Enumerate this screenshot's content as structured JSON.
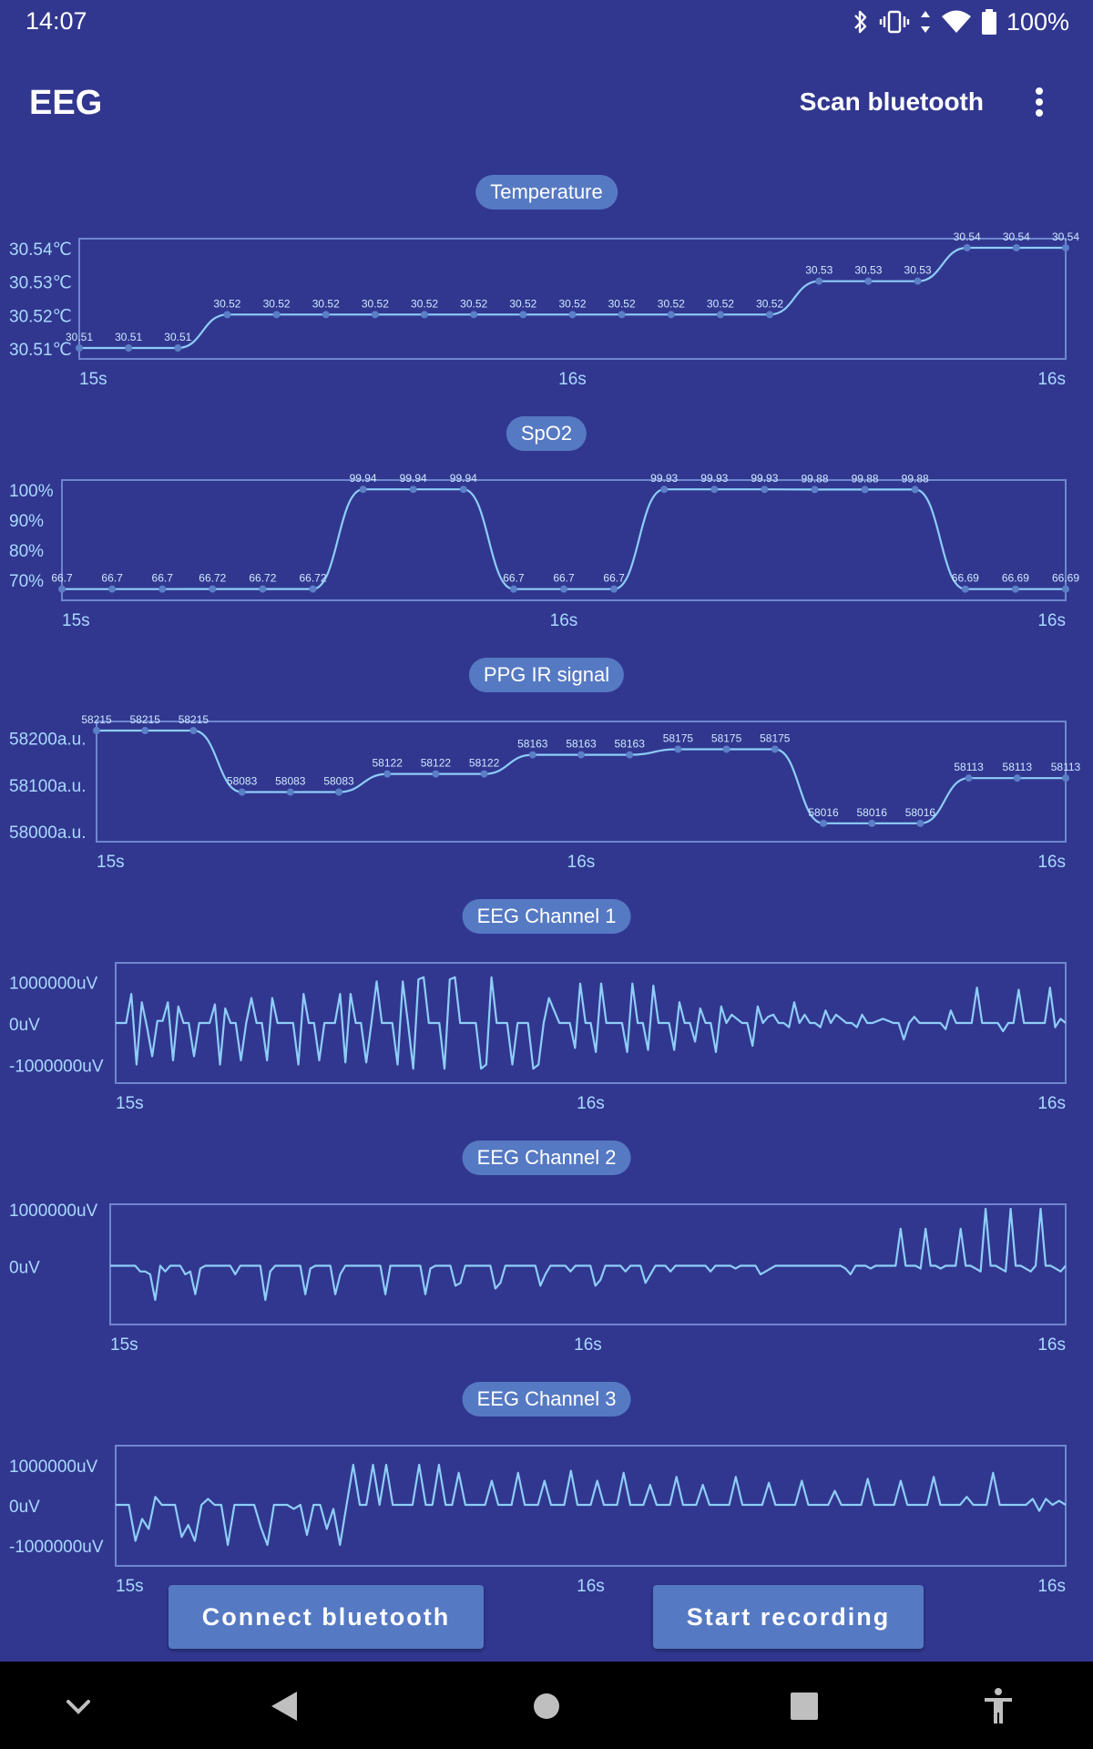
{
  "status_bar": {
    "time": "14:07",
    "battery": "100%",
    "icons": [
      "bluetooth-icon",
      "vibrate-icon",
      "data-arrows-icon",
      "wifi-icon",
      "battery-icon"
    ]
  },
  "app_bar": {
    "title": "EEG",
    "scan_label": "Scan bluetooth",
    "overflow_icon": "more-vert-icon"
  },
  "colors": {
    "background": "#31378f",
    "pill": "#5679c3",
    "line": "#8ecdf8",
    "axis": "#6f86cf",
    "label": "#a9d8ff"
  },
  "charts": [
    {
      "title": "Temperature",
      "y_ticks": [
        "30.54℃",
        "30.53℃",
        "30.52℃",
        "30.51℃"
      ],
      "x_ticks": [
        "15s",
        "16s",
        "16s"
      ]
    },
    {
      "title": "SpO2",
      "y_ticks": [
        "100%",
        "90%",
        "80%",
        "70%"
      ],
      "x_ticks": [
        "15s",
        "16s",
        "16s"
      ]
    },
    {
      "title": "PPG IR signal",
      "y_ticks": [
        "58200a.u.",
        "58100a.u.",
        "58000a.u."
      ],
      "x_ticks": [
        "15s",
        "16s",
        "16s"
      ]
    },
    {
      "title": "EEG Channel 1",
      "y_ticks": [
        "1000000uV",
        "0uV",
        "-1000000uV"
      ],
      "x_ticks": [
        "15s",
        "16s",
        "16s"
      ]
    },
    {
      "title": "EEG Channel 2",
      "y_ticks": [
        "1000000uV",
        "0uV"
      ],
      "x_ticks": [
        "15s",
        "16s",
        "16s"
      ]
    },
    {
      "title": "EEG Channel 3",
      "y_ticks": [
        "1000000uV",
        "0uV",
        "-1000000uV"
      ],
      "x_ticks": [
        "15s",
        "16s",
        "16s"
      ]
    }
  ],
  "chart_data": [
    {
      "type": "line",
      "title": "Temperature",
      "ylabel": "",
      "y_unit": "℃",
      "ylim": [
        30.51,
        30.54
      ],
      "y_tick_values": [
        30.54,
        30.53,
        30.52,
        30.51
      ],
      "x_tick_labels": [
        "15s",
        "16s",
        "16s"
      ],
      "smooth": true,
      "show_point_labels": true,
      "values": [
        30.51,
        30.51,
        30.51,
        30.52,
        30.52,
        30.52,
        30.52,
        30.52,
        30.52,
        30.52,
        30.52,
        30.52,
        30.52,
        30.52,
        30.52,
        30.53,
        30.53,
        30.53,
        30.54,
        30.54,
        30.54
      ],
      "point_labels": [
        "30.51",
        "30.51",
        "30.51",
        "30.52",
        "30.52",
        "30.52",
        "30.52",
        "30.52",
        "30.52",
        "30.52",
        "30.52",
        "30.52",
        "30.52",
        "30.52",
        "30.52",
        "30.53",
        "30.53",
        "30.53",
        "30.54",
        "30.54",
        "30.54"
      ]
    },
    {
      "type": "line",
      "title": "SpO2",
      "ylabel": "",
      "y_unit": "%",
      "ylim": [
        66.6,
        100
      ],
      "y_tick_values": [
        100,
        90,
        80,
        70
      ],
      "x_tick_labels": [
        "15s",
        "16s",
        "16s"
      ],
      "smooth": true,
      "show_point_labels": true,
      "values": [
        66.7,
        66.7,
        66.7,
        66.72,
        66.72,
        66.72,
        99.94,
        99.94,
        99.94,
        66.7,
        66.7,
        66.7,
        99.93,
        99.93,
        99.93,
        99.88,
        99.88,
        99.88,
        66.69,
        66.69,
        66.69
      ],
      "point_labels": [
        "66.7",
        "66.7",
        "66.7",
        "66.72",
        "66.72",
        "66.72",
        "99.94",
        "99.94",
        "99.94",
        "66.7",
        "66.7",
        "66.7",
        "99.93",
        "99.93",
        "99.93",
        "99.88",
        "99.88",
        "99.88",
        "66.69",
        "66.69",
        "66.69"
      ]
    },
    {
      "type": "line",
      "title": "PPG IR signal",
      "ylabel": "",
      "y_unit": "a.u.",
      "ylim": [
        58000,
        58215
      ],
      "y_tick_values": [
        58200,
        58100,
        58000
      ],
      "x_tick_labels": [
        "15s",
        "16s",
        "16s"
      ],
      "smooth": true,
      "show_point_labels": true,
      "values": [
        58215,
        58215,
        58215,
        58083,
        58083,
        58083,
        58122,
        58122,
        58122,
        58163,
        58163,
        58163,
        58175,
        58175,
        58175,
        58016,
        58016,
        58016,
        58113,
        58113,
        58113
      ],
      "point_labels": [
        "58215",
        "58215",
        "58215",
        "58083",
        "58083",
        "58083",
        "58122",
        "58122",
        "58122",
        "58163",
        "58163",
        "58163",
        "58175",
        "58175",
        "58175",
        "58016",
        "58016",
        "58016",
        "58113",
        "58113",
        "58113"
      ]
    },
    {
      "type": "line",
      "title": "EEG Channel 1",
      "ylabel": "",
      "y_unit": "uV",
      "ylim": [
        -1250000,
        1250000
      ],
      "y_tick_values": [
        1000000,
        0,
        -1000000
      ],
      "x_tick_labels": [
        "15s",
        "16s",
        "16s"
      ],
      "smooth": false,
      "show_point_labels": false,
      "values": [
        0,
        0,
        0,
        700000,
        -1000000,
        500000,
        -100000,
        -800000,
        50000,
        50000,
        500000,
        -900000,
        400000,
        0,
        0,
        -800000,
        0,
        0,
        0,
        450000,
        -1000000,
        350000,
        0,
        0,
        -900000,
        0,
        600000,
        0,
        0,
        -900000,
        600000,
        0,
        0,
        0,
        0,
        -1000000,
        700000,
        0,
        0,
        -900000,
        0,
        0,
        0,
        700000,
        -950000,
        700000,
        0,
        0,
        -950000,
        0,
        1000000,
        0,
        0,
        0,
        -1000000,
        1000000,
        0,
        -1100000,
        1050000,
        1100000,
        0,
        0,
        0,
        -1100000,
        1050000,
        1100000,
        0,
        0,
        0,
        0,
        -1100000,
        -1000000,
        1100000,
        0,
        0,
        0,
        -1000000,
        0,
        0,
        0,
        -1100000,
        -1000000,
        0,
        600000,
        300000,
        0,
        0,
        0,
        -600000,
        950000,
        0,
        0,
        -700000,
        950000,
        0,
        0,
        0,
        0,
        -700000,
        950000,
        0,
        0,
        -650000,
        900000,
        0,
        0,
        0,
        -650000,
        500000,
        0,
        0,
        -450000,
        350000,
        0,
        0,
        -700000,
        400000,
        0,
        200000,
        100000,
        0,
        0,
        -550000,
        400000,
        0,
        150000,
        200000,
        0,
        0,
        -100000,
        500000,
        0,
        200000,
        0,
        0,
        -100000,
        300000,
        0,
        200000,
        100000,
        0,
        0,
        -100000,
        200000,
        0,
        0,
        50000,
        100000,
        50000,
        0,
        0,
        -400000,
        0,
        150000,
        0,
        0,
        0,
        0,
        0,
        -150000,
        300000,
        0,
        0,
        0,
        0,
        850000,
        0,
        0,
        0,
        0,
        -200000,
        0,
        0,
        800000,
        0,
        0,
        0,
        0,
        0,
        850000,
        -100000,
        100000,
        0
      ]
    },
    {
      "type": "line",
      "title": "EEG Channel 2",
      "ylabel": "",
      "y_unit": "uV",
      "ylim": [
        -1000000,
        1000000
      ],
      "y_tick_values": [
        1000000,
        0
      ],
      "x_tick_labels": [
        "15s",
        "16s",
        "16s"
      ],
      "smooth": false,
      "show_point_labels": false,
      "values": [
        0,
        0,
        0,
        0,
        0,
        0,
        -100000,
        -100000,
        -150000,
        -600000,
        0,
        -100000,
        0,
        0,
        0,
        -150000,
        -100000,
        -500000,
        -50000,
        0,
        0,
        0,
        0,
        0,
        0,
        -150000,
        0,
        0,
        0,
        0,
        0,
        -600000,
        -100000,
        0,
        0,
        0,
        0,
        0,
        0,
        -500000,
        -50000,
        0,
        0,
        0,
        0,
        -500000,
        -150000,
        0,
        0,
        0,
        0,
        0,
        0,
        0,
        0,
        -500000,
        0,
        0,
        0,
        0,
        0,
        0,
        0,
        -500000,
        -50000,
        0,
        0,
        0,
        0,
        -350000,
        -300000,
        0,
        0,
        0,
        0,
        0,
        0,
        -400000,
        -300000,
        0,
        0,
        0,
        0,
        0,
        0,
        0,
        -350000,
        -150000,
        0,
        0,
        0,
        0,
        -100000,
        0,
        0,
        0,
        0,
        -350000,
        -250000,
        0,
        0,
        0,
        0,
        -100000,
        0,
        0,
        0,
        -300000,
        -150000,
        0,
        0,
        0,
        -100000,
        0,
        0,
        0,
        0,
        0,
        0,
        0,
        -100000,
        0,
        0,
        0,
        0,
        -50000,
        0,
        0,
        0,
        0,
        -150000,
        -100000,
        -50000,
        0,
        0,
        0,
        0,
        0,
        0,
        0,
        0,
        0,
        0,
        0,
        0,
        0,
        0,
        -50000,
        -150000,
        0,
        0,
        0,
        -50000,
        0,
        0,
        0,
        0,
        0,
        650000,
        0,
        0,
        0,
        -50000,
        650000,
        0,
        0,
        -50000,
        0,
        0,
        0,
        650000,
        0,
        0,
        -50000,
        -100000,
        1000000,
        0,
        0,
        -50000,
        -100000,
        1000000,
        0,
        0,
        -50000,
        -100000,
        0,
        1000000,
        0,
        0,
        -50000,
        -100000,
        0
      ]
    },
    {
      "type": "line",
      "title": "EEG Channel 3",
      "ylabel": "",
      "y_unit": "uV",
      "ylim": [
        -1250000,
        1250000
      ],
      "y_tick_values": [
        1000000,
        0,
        -1000000
      ],
      "x_tick_labels": [
        "15s",
        "16s",
        "16s"
      ],
      "smooth": false,
      "show_point_labels": false,
      "values": [
        0,
        0,
        0,
        -900000,
        -350000,
        -600000,
        200000,
        0,
        0,
        0,
        -800000,
        -500000,
        -900000,
        0,
        150000,
        0,
        0,
        -1000000,
        0,
        0,
        0,
        0,
        -550000,
        -1000000,
        0,
        0,
        0,
        -100000,
        0,
        -750000,
        0,
        0,
        -600000,
        -100000,
        -1000000,
        0,
        1000000,
        0,
        0,
        1000000,
        0,
        1000000,
        0,
        0,
        0,
        0,
        1000000,
        0,
        0,
        1000000,
        0,
        0,
        800000,
        0,
        0,
        0,
        0,
        600000,
        0,
        0,
        0,
        800000,
        0,
        0,
        0,
        600000,
        0,
        0,
        0,
        850000,
        0,
        0,
        0,
        600000,
        0,
        0,
        0,
        800000,
        0,
        0,
        0,
        500000,
        0,
        0,
        0,
        700000,
        0,
        0,
        0,
        500000,
        0,
        0,
        0,
        0,
        700000,
        0,
        0,
        0,
        0,
        550000,
        0,
        0,
        0,
        0,
        600000,
        0,
        0,
        0,
        0,
        350000,
        0,
        0,
        0,
        0,
        650000,
        0,
        0,
        0,
        0,
        600000,
        0,
        0,
        0,
        0,
        700000,
        0,
        0,
        0,
        0,
        200000,
        0,
        0,
        0,
        800000,
        0,
        0,
        0,
        0,
        0,
        150000,
        -150000,
        150000,
        0,
        100000,
        0
      ]
    }
  ],
  "buttons": {
    "connect_label": "Connect bluetooth",
    "record_label": "Start recording"
  },
  "nav_bar": {
    "icons": [
      "chevron-down-icon",
      "back-icon",
      "home-icon",
      "recents-icon",
      "accessibility-icon"
    ]
  }
}
